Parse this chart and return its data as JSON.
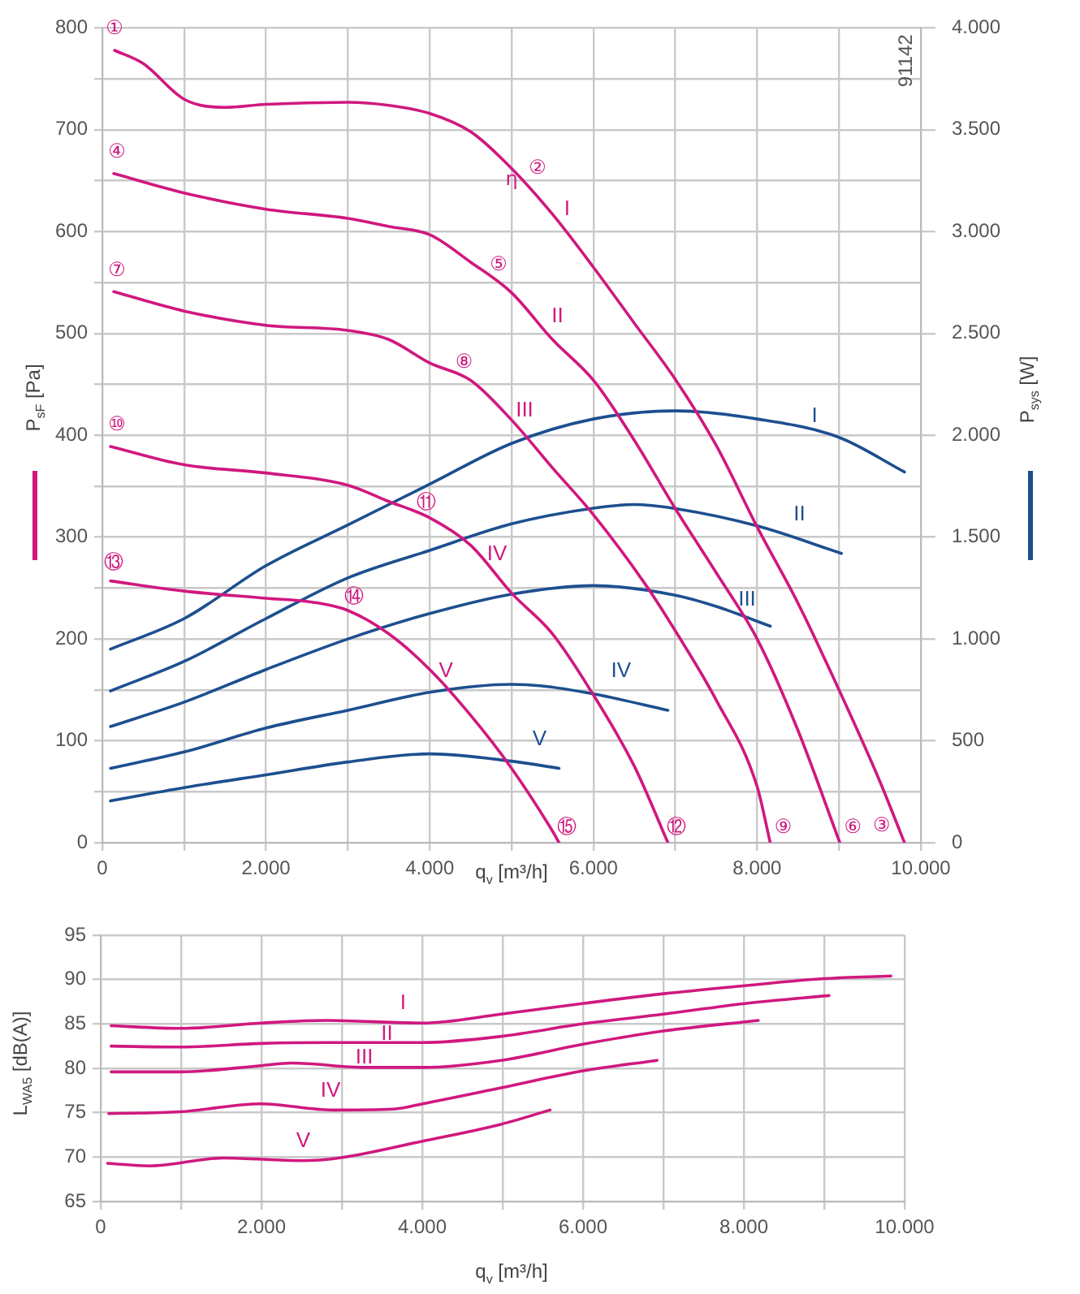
{
  "chart_data": [
    {
      "type": "line",
      "xlabel": "q$_{v}$ [m³/h]",
      "ylabel": "P$_{sF}$ [Pa]",
      "y2label": "P$_{sys}$ [W]",
      "xlim": [
        0,
        10000
      ],
      "xticks": [
        0,
        {
          "value": 1000,
          "label": null
        },
        {
          "value": 2000,
          "label": "2.000"
        },
        {
          "value": 3000,
          "label": null
        },
        {
          "value": 4000,
          "label": "4.000"
        },
        {
          "value": 5000,
          "label": null
        },
        {
          "value": 6000,
          "label": "6.000"
        },
        {
          "value": 7000,
          "label": null
        },
        {
          "value": 8000,
          "label": "8.000"
        },
        {
          "value": 9000,
          "label": null
        },
        {
          "value": 10000,
          "label": "10.000"
        }
      ],
      "ylim": [
        0,
        800
      ],
      "yticks": [
        0,
        {
          "value": 50,
          "label": null
        },
        100,
        {
          "value": 150,
          "label": null
        },
        200,
        {
          "value": 250,
          "label": null
        },
        300,
        {
          "value": 350,
          "label": null
        },
        400,
        {
          "value": 450,
          "label": null
        },
        500,
        {
          "value": 550,
          "label": null
        },
        600,
        {
          "value": 650,
          "label": null
        },
        700,
        {
          "value": 750,
          "label": null
        },
        800
      ],
      "y2lim": [
        0,
        4000
      ],
      "y2ticks": [
        0,
        500,
        {
          "value": 1000,
          "label": "1.000"
        },
        {
          "value": 1500,
          "label": "1.500"
        },
        {
          "value": 2000,
          "label": "2.000"
        },
        {
          "value": 2500,
          "label": "2.500"
        },
        {
          "value": 3000,
          "label": "3.000"
        },
        {
          "value": 3500,
          "label": "3.500"
        },
        {
          "value": 4000,
          "label": "4.000"
        }
      ],
      "grid": true,
      "series": [
        {
          "name": "I",
          "color": "#d0187f",
          "x": [
            150,
            500,
            1000,
            1500,
            2000,
            3000,
            3500,
            4000,
            4500,
            5000,
            5500,
            6000,
            6500,
            7000,
            7500,
            8000,
            8500,
            9000,
            9500,
            9800
          ],
          "values": [
            778,
            765,
            730,
            722,
            725,
            727,
            724,
            716,
            698,
            662,
            617,
            565,
            510,
            455,
            390,
            310,
            235,
            150,
            60,
            0
          ]
        },
        {
          "name": "II",
          "color": "#d0187f",
          "x": [
            140,
            1000,
            2000,
            3000,
            3500,
            4000,
            4500,
            5000,
            5500,
            6000,
            6500,
            7000,
            7500,
            8000,
            8500,
            9010
          ],
          "values": [
            657,
            638,
            622,
            613,
            605,
            597,
            570,
            540,
            494,
            454,
            395,
            328,
            265,
            200,
            110,
            0
          ]
        },
        {
          "name": "III",
          "color": "#d0187f",
          "x": [
            140,
            1000,
            2000,
            3000,
            3500,
            4000,
            4500,
            5000,
            5500,
            6000,
            6640,
            7000,
            7500,
            8000,
            8160
          ],
          "values": [
            541,
            522,
            508,
            503,
            494,
            471,
            454,
            415,
            368,
            322,
            253,
            208,
            140,
            55,
            0
          ]
        },
        {
          "name": "IV",
          "color": "#d0187f",
          "x": [
            100,
            1000,
            2000,
            3000,
            3500,
            4000,
            4500,
            5000,
            5500,
            6000,
            6500,
            6910
          ],
          "values": [
            389,
            371,
            363,
            351,
            335,
            319,
            292,
            245,
            205,
            145,
            75,
            0
          ]
        },
        {
          "name": "V",
          "color": "#d0187f",
          "x": [
            100,
            1000,
            2000,
            2580,
            3000,
            3500,
            4000,
            4500,
            5000,
            5510,
            5580
          ],
          "values": [
            257,
            247,
            240,
            236,
            228,
            205,
            170,
            125,
            73,
            10,
            0
          ]
        },
        {
          "name": "I",
          "color": "#1d4f8f",
          "axis": "y2",
          "x": [
            100,
            1000,
            2000,
            3000,
            4000,
            5000,
            6000,
            7000,
            8000,
            9000,
            9800
          ],
          "values": [
            950,
            1100,
            1360,
            1560,
            1760,
            1960,
            2080,
            2120,
            2080,
            1990,
            1820
          ]
        },
        {
          "name": "II",
          "color": "#1d4f8f",
          "axis": "y2",
          "x": [
            100,
            1000,
            2000,
            3000,
            4000,
            5000,
            6000,
            6500,
            7000,
            8000,
            9030
          ],
          "values": [
            745,
            890,
            1100,
            1300,
            1435,
            1565,
            1642,
            1660,
            1640,
            1555,
            1420
          ]
        },
        {
          "name": "III",
          "color": "#1d4f8f",
          "axis": "y2",
          "x": [
            100,
            1000,
            2000,
            3000,
            4000,
            5000,
            6000,
            7000,
            7500,
            8160
          ],
          "values": [
            570,
            690,
            850,
            1000,
            1125,
            1220,
            1262,
            1215,
            1160,
            1063
          ]
        },
        {
          "name": "IV",
          "color": "#1d4f8f",
          "axis": "y2",
          "x": [
            100,
            1000,
            2000,
            3000,
            4000,
            5000,
            5350,
            6000,
            6910
          ],
          "values": [
            365,
            445,
            563,
            650,
            738,
            777,
            770,
            730,
            650
          ]
        },
        {
          "name": "V",
          "color": "#1d4f8f",
          "axis": "y2",
          "x": [
            100,
            1000,
            2000,
            3000,
            4000,
            5000,
            5580
          ],
          "values": [
            205,
            270,
            333,
            396,
            436,
            400,
            365
          ]
        }
      ],
      "annotations": [
        {
          "text": "①",
          "x": 150,
          "y": 778
        },
        {
          "text": "②",
          "x": 5000,
          "y": 662
        },
        {
          "text": "③",
          "x": 9800,
          "y": 0
        },
        {
          "text": "④",
          "x": 140,
          "y": 657
        },
        {
          "text": "⑤",
          "x": 5000,
          "y": 540
        },
        {
          "text": "⑥",
          "x": 9010,
          "y": 0
        },
        {
          "text": "⑦",
          "x": 140,
          "y": 541
        },
        {
          "text": "⑧",
          "x": 4500,
          "y": 454
        },
        {
          "text": "⑨",
          "x": 8160,
          "y": 0
        },
        {
          "text": "⑩",
          "x": 100,
          "y": 389
        },
        {
          "text": "⑪",
          "x": 4000,
          "y": 319
        },
        {
          "text": "⑫",
          "x": 6910,
          "y": 0
        },
        {
          "text": "⑬",
          "x": 100,
          "y": 257
        },
        {
          "text": "⑭",
          "x": 3000,
          "y": 228
        },
        {
          "text": "⑮",
          "x": 5580,
          "y": 0
        },
        {
          "text": "η",
          "x": 5000,
          "y": 662
        },
        "91142"
      ]
    },
    {
      "type": "line",
      "xlabel": "q$_{v}$ [m³/h]",
      "ylabel": "L$_{WA5}$ [dB(A)]",
      "xlim": [
        0,
        10000
      ],
      "xticks": [
        0,
        {
          "value": 1000,
          "label": null
        },
        {
          "value": 2000,
          "label": "2.000"
        },
        {
          "value": 3000,
          "label": null
        },
        {
          "value": 4000,
          "label": "4.000"
        },
        {
          "value": 5000,
          "label": null
        },
        {
          "value": 6000,
          "label": "6.000"
        },
        {
          "value": 7000,
          "label": null
        },
        {
          "value": 8000,
          "label": "8.000"
        },
        {
          "value": 9000,
          "label": null
        },
        {
          "value": 10000,
          "label": "10.000"
        }
      ],
      "ylim": [
        65,
        95
      ],
      "yticks": [
        65,
        70,
        75,
        80,
        85,
        90,
        95
      ],
      "grid": true,
      "series": [
        {
          "name": "I",
          "color": "#d0187f",
          "x": [
            130,
            985,
            1995,
            2795,
            4005,
            4980,
            5990,
            7000,
            8010,
            8990,
            9830
          ],
          "values": [
            84.8,
            84.5,
            85.1,
            85.4,
            85.1,
            86.1,
            87.3,
            88.4,
            89.3,
            90.1,
            90.4
          ]
        },
        {
          "name": "II",
          "color": "#d0187f",
          "x": [
            130,
            985,
            1995,
            2795,
            4005,
            4980,
            5990,
            7000,
            8010,
            9060
          ],
          "values": [
            82.5,
            82.4,
            82.8,
            82.9,
            82.9,
            83.6,
            85.0,
            86.1,
            87.3,
            88.2
          ]
        },
        {
          "name": "III",
          "color": "#d0187f",
          "x": [
            130,
            985,
            1995,
            2375,
            3300,
            4005,
            4980,
            5990,
            7000,
            8180
          ],
          "values": [
            79.6,
            79.6,
            80.3,
            80.6,
            80.1,
            80.1,
            80.9,
            82.7,
            84.2,
            85.4
          ]
        },
        {
          "name": "IV",
          "color": "#d0187f",
          "x": [
            100,
            985,
            1995,
            2880,
            3640,
            4005,
            4980,
            5990,
            6920
          ],
          "values": [
            74.9,
            75.1,
            76.0,
            75.3,
            75.4,
            76.0,
            77.8,
            79.7,
            80.9
          ]
        },
        {
          "name": "V",
          "color": "#d0187f",
          "x": [
            85,
            605,
            1530,
            2500,
            2960,
            4005,
            4980,
            5590
          ],
          "values": [
            69.3,
            69.0,
            69.9,
            69.6,
            69.9,
            71.8,
            73.7,
            75.3
          ]
        }
      ]
    }
  ]
}
